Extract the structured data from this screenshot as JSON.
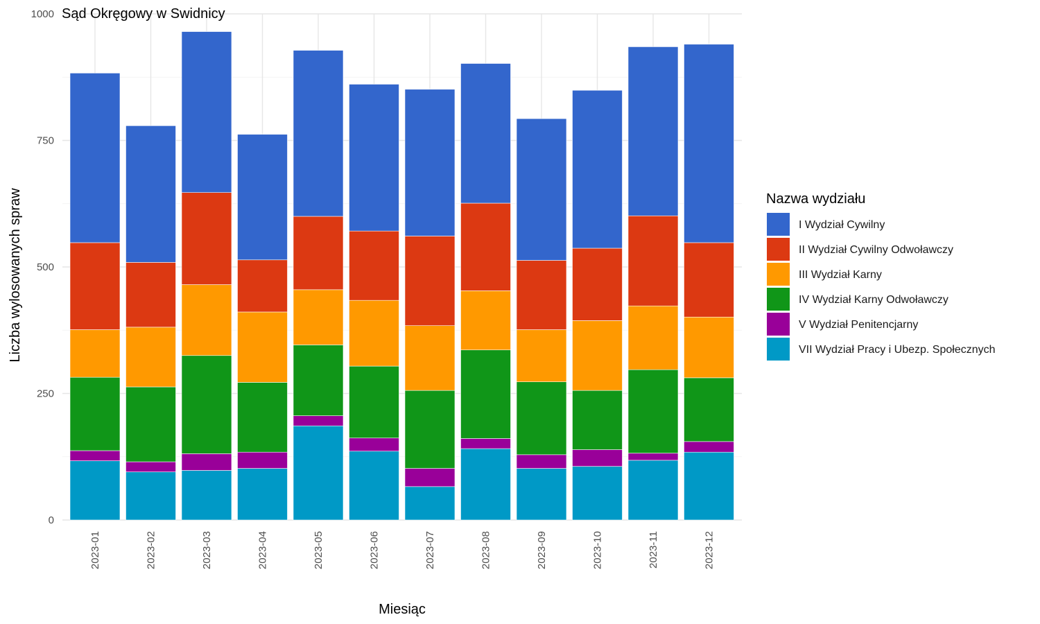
{
  "chart_data": {
    "type": "bar",
    "stacked": true,
    "title": "Sąd Okręgowy w Swidnicy",
    "xlabel": "Miesiąc",
    "ylabel": "Liczba wylosowanych spraw",
    "ylim": [
      0,
      1000
    ],
    "yticks": [
      0,
      250,
      500,
      750,
      1000
    ],
    "ytick_labels": [
      "0",
      "250",
      "500",
      "750",
      "1000"
    ],
    "grid": true,
    "legend_title": "Nazwa wydziału",
    "legend_position": "right",
    "categories": [
      "2023-01",
      "2023-02",
      "2023-03",
      "2023-04",
      "2023-05",
      "2023-06",
      "2023-07",
      "2023-08",
      "2023-09",
      "2023-10",
      "2023-11",
      "2023-12"
    ],
    "series": [
      {
        "name": "I Wydział Cywilny",
        "color": "#3366cc",
        "values": [
          335,
          270,
          318,
          248,
          328,
          290,
          290,
          276,
          280,
          312,
          334,
          392
        ]
      },
      {
        "name": "II Wydział Cywilny Odwoławczy",
        "color": "#dc3912",
        "values": [
          172,
          128,
          182,
          103,
          145,
          137,
          177,
          173,
          137,
          143,
          178,
          147
        ]
      },
      {
        "name": "III Wydział Karny",
        "color": "#ff9900",
        "values": [
          94,
          118,
          140,
          139,
          109,
          130,
          128,
          117,
          103,
          138,
          126,
          120
        ]
      },
      {
        "name": "IV Wydział Karny Odwoławczy",
        "color": "#109618",
        "values": [
          145,
          148,
          194,
          138,
          140,
          142,
          154,
          175,
          144,
          117,
          165,
          126
        ]
      },
      {
        "name": "V Wydział Penitencjarny",
        "color": "#990099",
        "values": [
          20,
          20,
          33,
          32,
          20,
          26,
          36,
          20,
          27,
          33,
          14,
          21
        ]
      },
      {
        "name": "VII Wydział Pracy i Ubezp. Społecznych",
        "color": "#0099c6",
        "values": [
          117,
          95,
          98,
          102,
          186,
          136,
          66,
          141,
          102,
          106,
          118,
          134
        ]
      }
    ]
  }
}
